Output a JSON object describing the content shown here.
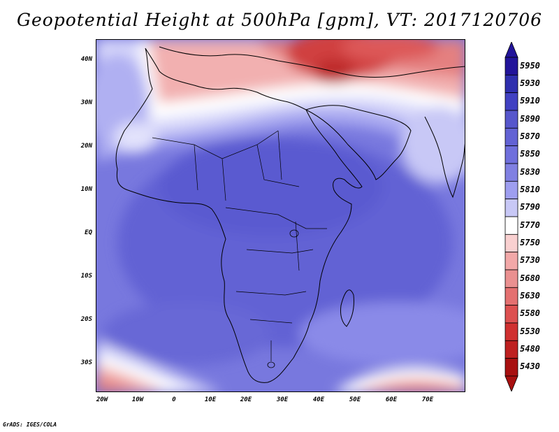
{
  "title": "Geopotential Height at 500hPa [gpm], VT: 2017120706",
  "credit": "GrADS: IGES/COLA",
  "map": {
    "lat_ticks": [
      "40N",
      "30N",
      "20N",
      "10N",
      "EQ",
      "10S",
      "20S",
      "30S"
    ],
    "lon_ticks": [
      "20W",
      "10W",
      "0",
      "10E",
      "20E",
      "30E",
      "40E",
      "50E",
      "60E",
      "70E"
    ]
  },
  "colorbar": {
    "levels": [
      "5950",
      "5930",
      "5910",
      "5890",
      "5870",
      "5850",
      "5830",
      "5810",
      "5790",
      "5770",
      "5750",
      "5730",
      "5680",
      "5630",
      "5580",
      "5530",
      "5480",
      "5430"
    ],
    "colors": [
      "#22149a",
      "#2f2fae",
      "#4141c2",
      "#5656cc",
      "#6262d4",
      "#6f6fdc",
      "#8080e2",
      "#9e9ef0",
      "#c8c8f6",
      "#ffffff",
      "#f9d0d0",
      "#f2a8a8",
      "#ea9090",
      "#e47070",
      "#dd5050",
      "#d03030",
      "#be2020",
      "#a81010"
    ],
    "top_arrow_color": "#22149a",
    "bottom_arrow_color": "#a81010"
  }
}
